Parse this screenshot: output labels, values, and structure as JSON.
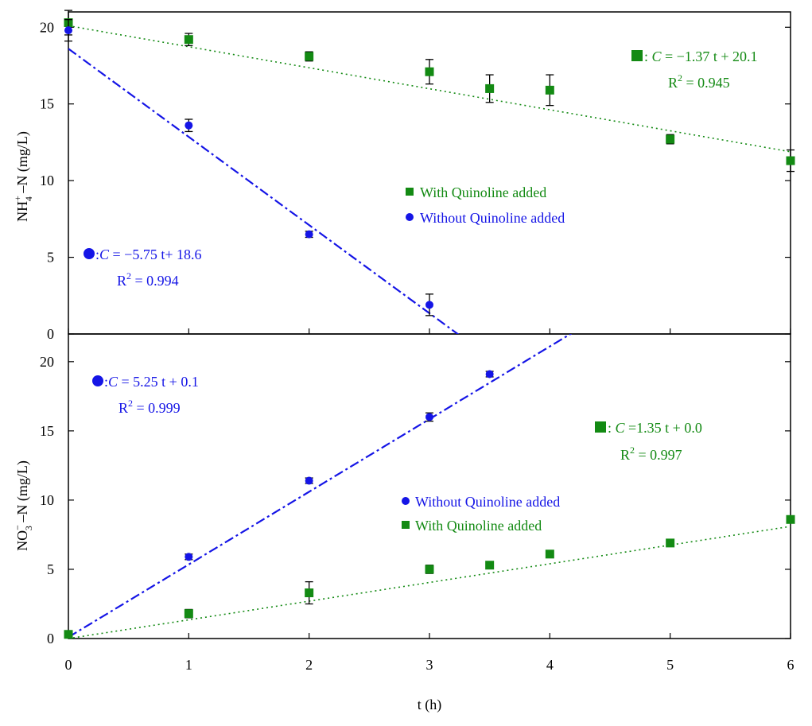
{
  "colors": {
    "with_quinoline": "#138a13",
    "without_quinoline": "#1515e6",
    "axis": "#000000",
    "background": "#ffffff"
  },
  "xaxis": {
    "label": "t (h)",
    "ticks": [
      "0",
      "1",
      "2",
      "3",
      "4",
      "5",
      "6"
    ]
  },
  "chart_data": [
    {
      "type": "scatter",
      "panel": "top",
      "ylabel_main": "NH",
      "ylabel_sub": "4",
      "ylabel_sup": "+",
      "ylabel_rest": " –N (mg/L)",
      "xlim": [
        0,
        6
      ],
      "ylim": [
        0,
        21
      ],
      "yticks": [
        0,
        5,
        10,
        15,
        20
      ],
      "ytick_labels": [
        "0",
        "5",
        "10",
        "15",
        "20"
      ],
      "legend": [
        {
          "name": "With Quinoline added",
          "marker": "square",
          "color": "#138a13"
        },
        {
          "name": "Without Quinoline added",
          "marker": "circle",
          "color": "#1515e6"
        }
      ],
      "series": [
        {
          "name": "With Quinoline added",
          "marker": "square",
          "color": "#138a13",
          "x": [
            0,
            1,
            2,
            3,
            3.5,
            4,
            5,
            6
          ],
          "y": [
            20.3,
            19.2,
            18.1,
            17.1,
            16.0,
            15.9,
            12.7,
            11.3
          ],
          "err": [
            0.8,
            0.4,
            0.3,
            0.8,
            0.9,
            1.0,
            0.3,
            0.7
          ],
          "fit": {
            "slope": -1.37,
            "intercept": 20.1,
            "style": "dotted"
          },
          "equation": {
            "marker": "square",
            "prefix": ": ",
            "var": "C",
            "rest": " = −1.37 t + 20.1",
            "r2_label": "R",
            "r2_sup": "2",
            "r2_value": " = 0.945"
          }
        },
        {
          "name": "Without Quinoline added",
          "marker": "circle",
          "color": "#1515e6",
          "x": [
            0,
            1,
            2,
            3
          ],
          "y": [
            19.8,
            13.6,
            6.5,
            1.9
          ],
          "err": [
            0.7,
            0.4,
            0.2,
            0.7
          ],
          "fit": {
            "slope": -5.75,
            "intercept": 18.6,
            "style": "dashdot"
          },
          "equation": {
            "marker": "circle",
            "prefix": ":",
            "var": "C",
            "rest": " = −5.75 t+ 18.6",
            "r2_label": "R",
            "r2_sup": "2",
            "r2_value": " = 0.994"
          }
        }
      ]
    },
    {
      "type": "scatter",
      "panel": "bottom",
      "ylabel_main": "NO",
      "ylabel_sub": "3",
      "ylabel_sup": "−",
      "ylabel_rest": " –N (mg/L)",
      "xlim": [
        0,
        6
      ],
      "ylim": [
        0,
        22
      ],
      "yticks": [
        0,
        5,
        10,
        15,
        20
      ],
      "ytick_labels": [
        "0",
        "5",
        "10",
        "15",
        "20"
      ],
      "legend": [
        {
          "name": "Without Quinoline added",
          "marker": "circle",
          "color": "#1515e6"
        },
        {
          "name": "With Quinoline added",
          "marker": "square",
          "color": "#138a13"
        }
      ],
      "series": [
        {
          "name": "Without Quinoline added",
          "marker": "circle",
          "color": "#1515e6",
          "x": [
            0,
            1,
            2,
            3,
            3.5
          ],
          "y": [
            0.3,
            5.9,
            11.4,
            16.0,
            19.1
          ],
          "err": [
            0.1,
            0.2,
            0.2,
            0.3,
            0.2
          ],
          "fit": {
            "slope": 5.25,
            "intercept": 0.1,
            "style": "dashdot"
          },
          "equation": {
            "marker": "circle",
            "prefix": ":",
            "var": "C",
            "rest": " = 5.25 t + 0.1",
            "r2_label": "R",
            "r2_sup": "2",
            "r2_value": " = 0.999"
          }
        },
        {
          "name": "With Quinoline added",
          "marker": "square",
          "color": "#138a13",
          "x": [
            0,
            1,
            2,
            3,
            3.5,
            4,
            5,
            6
          ],
          "y": [
            0.3,
            1.8,
            3.3,
            5.0,
            5.3,
            6.1,
            6.9,
            8.6
          ],
          "err": [
            0.1,
            0.3,
            0.8,
            0.3,
            0.2,
            0.2,
            0.2,
            0.2
          ],
          "fit": {
            "slope": 1.35,
            "intercept": 0.0,
            "style": "dotted"
          },
          "equation": {
            "marker": "square",
            "prefix": ": ",
            "var": "C",
            "rest": " =1.35 t + 0.0",
            "r2_label": "R",
            "r2_sup": "2",
            "r2_value": " = 0.997"
          }
        }
      ]
    }
  ]
}
